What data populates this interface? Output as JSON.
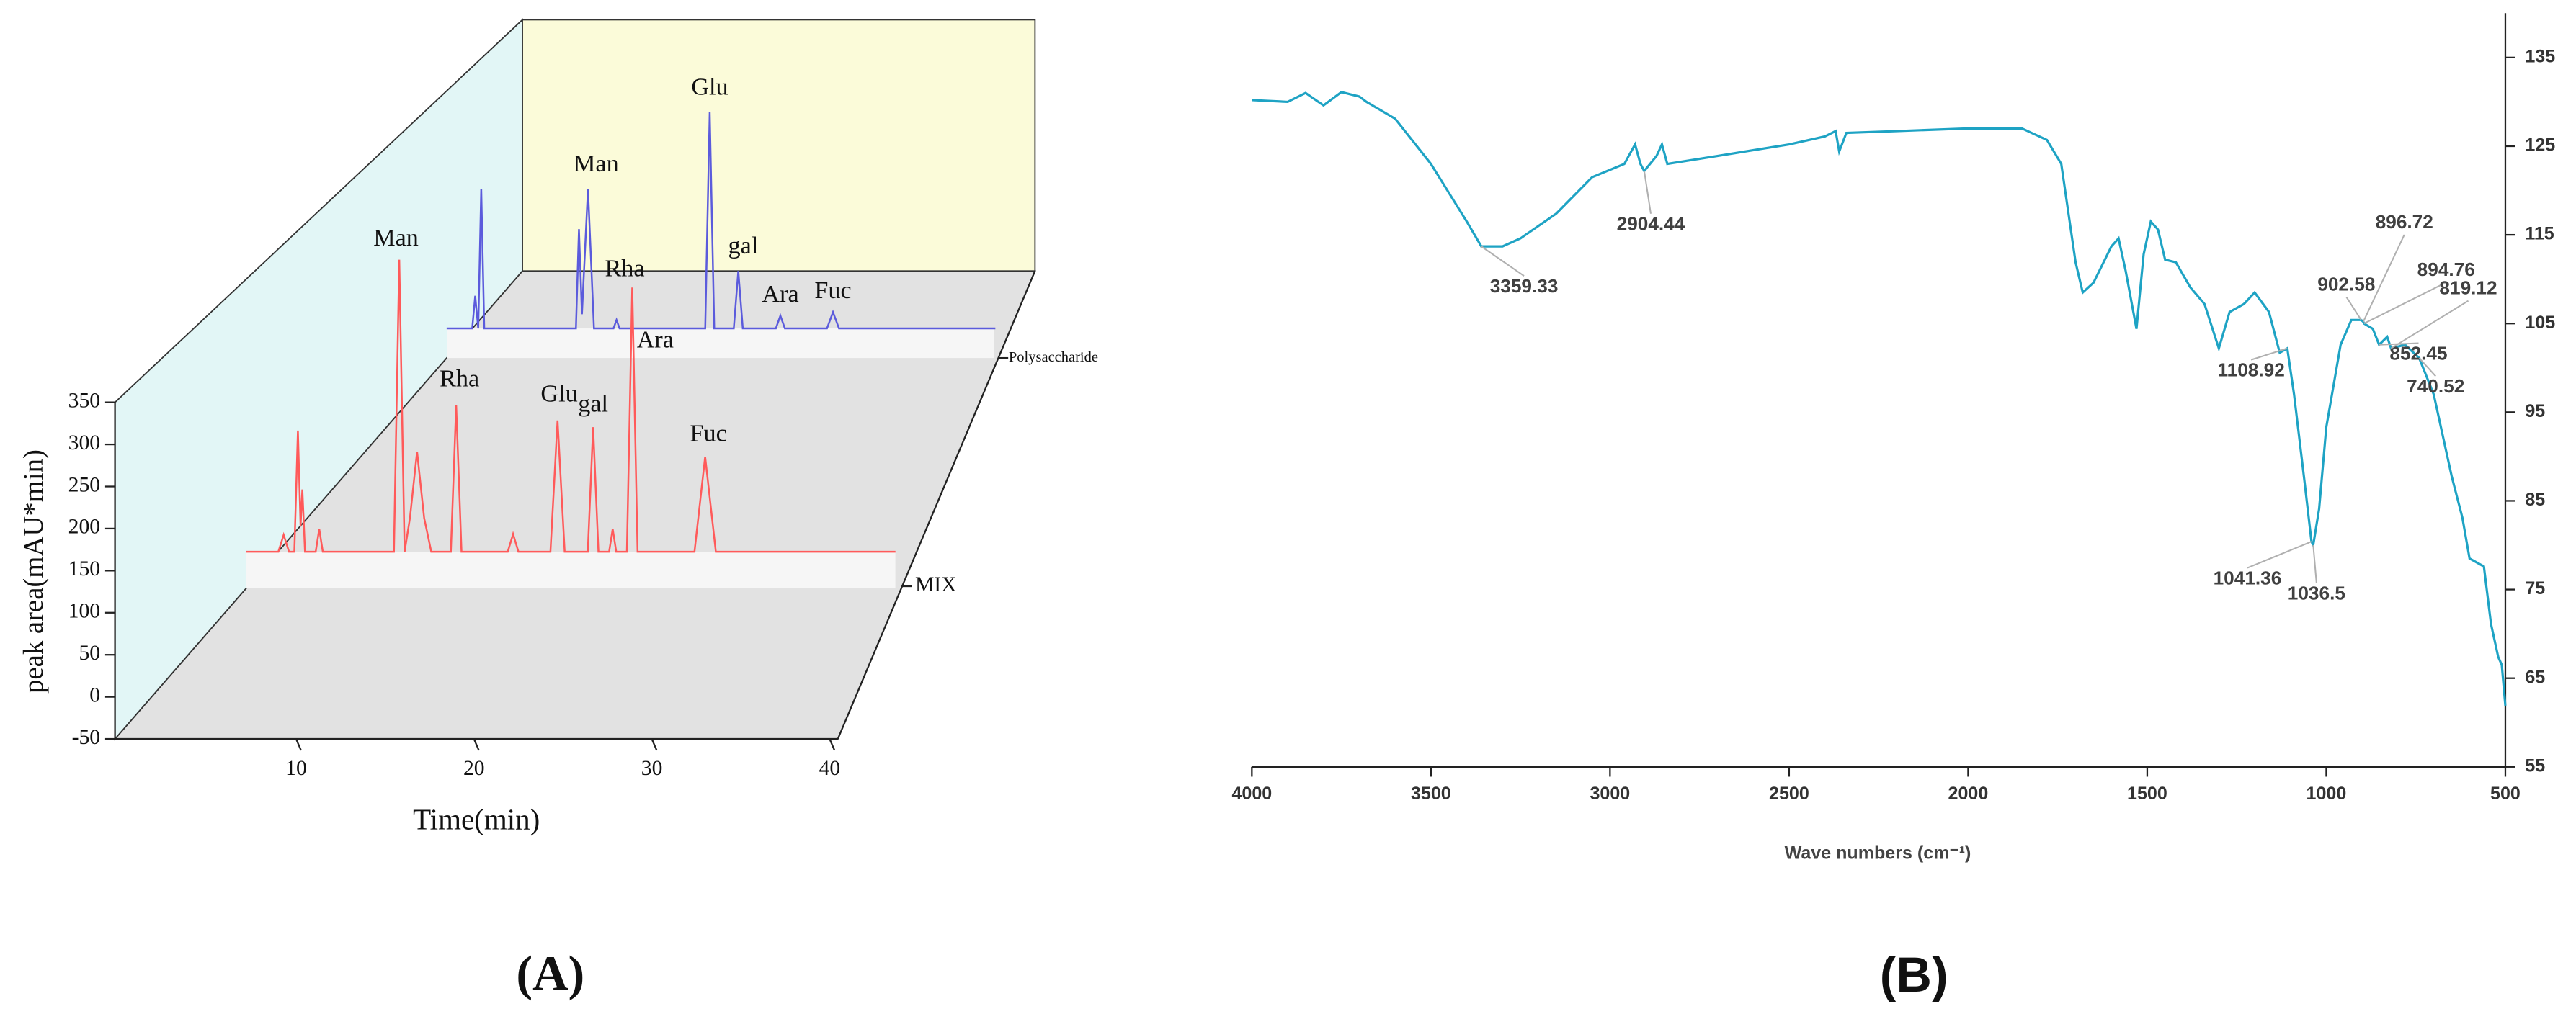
{
  "chart_data": [
    {
      "type": "waterfall",
      "ylabel": "peak area(mAU*min)",
      "xlabel": "Time(min)",
      "panel_label": "(A)",
      "xlim": [
        0,
        40
      ],
      "xticks": [
        10,
        20,
        30,
        40
      ],
      "ylim": [
        -50,
        350
      ],
      "yticks": [
        -50,
        0,
        50,
        100,
        150,
        200,
        250,
        300,
        350
      ],
      "series": [
        {
          "name": "MIX",
          "color": "#ff5a5a",
          "x": [
            7.2,
            9.0,
            9.3,
            9.6,
            9.9,
            10.1,
            10.25,
            10.35,
            10.5,
            11.1,
            11.3,
            11.5,
            15.5,
            15.8,
            16.1,
            16.4,
            16.8,
            17.2,
            17.6,
            18.7,
            19.0,
            19.3,
            21.9,
            22.2,
            22.5,
            24.3,
            24.7,
            25.1,
            26.4,
            26.7,
            27.0,
            27.6,
            27.8,
            28.0,
            28.6,
            28.9,
            29.2,
            32.4,
            33.0,
            33.6,
            43.7
          ],
          "values": [
            0,
            0,
            20,
            0,
            0,
            144,
            30,
            74,
            0,
            0,
            27,
            0,
            0,
            347,
            0,
            40,
            119,
            40,
            0,
            0,
            174,
            0,
            0,
            21,
            0,
            0,
            156,
            0,
            0,
            148,
            0,
            0,
            27,
            0,
            0,
            314,
            0,
            0,
            113,
            0,
            0
          ],
          "peak_labels": [
            {
              "text": "Man",
              "x": 15.8
            },
            {
              "text": "Rha",
              "x": 19.0
            },
            {
              "text": "Glu",
              "x": 24.7
            },
            {
              "text": "gal",
              "x": 26.7
            },
            {
              "text": "Ara",
              "x": 28.9
            },
            {
              "text": "Fuc",
              "x": 33.0
            }
          ]
        },
        {
          "name": "Polysaccharide",
          "color": "#5b5bdc",
          "x": [
            7.2,
            8.9,
            9.1,
            9.3,
            9.5,
            9.7,
            10.5,
            15.8,
            16.0,
            16.2,
            16.6,
            17.0,
            18.3,
            18.5,
            18.7,
            24.4,
            24.7,
            25.0,
            26.3,
            26.6,
            26.9,
            29.1,
            29.4,
            29.7,
            32.5,
            32.9,
            33.3,
            43.7
          ],
          "values": [
            0,
            0,
            46,
            0,
            197,
            0,
            0,
            0,
            140,
            20,
            197,
            0,
            0,
            12,
            0,
            0,
            305,
            0,
            0,
            81,
            0,
            0,
            18,
            0,
            0,
            23,
            0,
            0
          ],
          "peak_labels": [
            {
              "text": "Man",
              "x": 16.6
            },
            {
              "text": "Rha",
              "x": 18.5
            },
            {
              "text": "Glu",
              "x": 24.7
            },
            {
              "text": "gal",
              "x": 26.6
            },
            {
              "text": "Ara",
              "x": 29.4
            },
            {
              "text": "Fuc",
              "x": 32.9
            }
          ]
        }
      ]
    },
    {
      "type": "line",
      "xlabel": "Wave numbers (cm⁻¹)",
      "panel_label": "(B)",
      "xlim": [
        4000,
        500
      ],
      "xticks": [
        4000,
        3500,
        3000,
        2500,
        2000,
        1500,
        1000,
        500
      ],
      "ylim": [
        55,
        140
      ],
      "yticks": [
        55,
        65,
        75,
        85,
        95,
        105,
        115,
        125,
        135
      ],
      "color": "#1ea3c4",
      "x": [
        4000,
        3900,
        3850,
        3800,
        3750,
        3700,
        3680,
        3600,
        3500,
        3400,
        3359.33,
        3300,
        3250,
        3150,
        3050,
        2960,
        2930,
        2915,
        2904.44,
        2870,
        2855,
        2840,
        2700,
        2500,
        2400,
        2370,
        2360,
        2340,
        2200,
        2000,
        1850,
        1780,
        1740,
        1700,
        1680,
        1650,
        1600,
        1580,
        1560,
        1530,
        1510,
        1490,
        1470,
        1450,
        1420,
        1380,
        1340,
        1300,
        1270,
        1230,
        1200,
        1160,
        1130,
        1108.92,
        1090,
        1060,
        1041.36,
        1036.5,
        1020,
        1000,
        960,
        930,
        902.58,
        896.72,
        894.76,
        870,
        852.45,
        830,
        819.12,
        780,
        740.52,
        700,
        650,
        620,
        600,
        560,
        540,
        520,
        510,
        500
      ],
      "values": [
        130.2,
        130,
        131,
        129.6,
        131.1,
        130.6,
        130,
        128.1,
        123,
        116.5,
        113.7,
        113.7,
        114.6,
        117.4,
        121.5,
        123,
        125.2,
        123,
        122.2,
        123.9,
        125.2,
        123,
        123.9,
        125.2,
        126.1,
        126.7,
        124.4,
        126.5,
        126.7,
        127,
        127,
        125.7,
        123,
        111.9,
        108.5,
        109.6,
        113.7,
        114.6,
        110.9,
        104.4,
        112.8,
        116.5,
        115.6,
        112.2,
        111.9,
        109.1,
        107.2,
        102.2,
        106.3,
        107.2,
        108.5,
        106.3,
        101.7,
        102.2,
        97,
        86.9,
        80.4,
        80,
        84.1,
        93.3,
        102.6,
        105.4,
        105.4,
        105.2,
        105,
        104.4,
        102.6,
        103.5,
        102.2,
        102.6,
        101.1,
        97,
        87.8,
        83.1,
        78.5,
        77.6,
        71.1,
        67.4,
        66.5,
        61.9
      ],
      "peak_labels": [
        3359.33,
        2904.44,
        1108.92,
        1041.36,
        1036.5,
        902.58,
        896.72,
        894.76,
        852.45,
        819.12,
        740.52
      ]
    }
  ]
}
